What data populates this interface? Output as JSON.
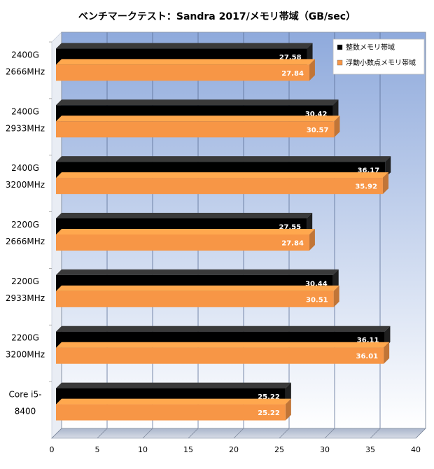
{
  "chart_data": {
    "type": "bar",
    "orientation": "horizontal",
    "title": "ベンチマークテスト：Sandra 2017/メモリ帯域（GB/sec）",
    "categories": [
      [
        "2400G",
        "2666MHz"
      ],
      [
        "2400G",
        "2933MHz"
      ],
      [
        "2400G",
        "3200MHz"
      ],
      [
        "2200G",
        "2666MHz"
      ],
      [
        "2200G",
        "2933MHz"
      ],
      [
        "2200G",
        "3200MHz"
      ],
      [
        "Core i5-",
        "8400"
      ]
    ],
    "series": [
      {
        "name": "整数メモリ帯域",
        "color": "#000000",
        "label_color": "#ffffff",
        "values": [
          27.58,
          30.42,
          36.17,
          27.55,
          30.44,
          36.11,
          25.22
        ],
        "labels": [
          "27.58",
          "30.42",
          "36.17",
          "27.55",
          "30.44",
          "36.11",
          "25.22"
        ]
      },
      {
        "name": "浮動小数点メモリ帯域",
        "color": "#f79646",
        "label_color": "#ffffff",
        "values": [
          27.84,
          30.57,
          35.92,
          27.84,
          30.51,
          36.01,
          25.22
        ],
        "labels": [
          "27.84",
          "30.57",
          "35.92",
          "27.84",
          "30.51",
          "36.01",
          "25.22"
        ]
      }
    ],
    "xlim": [
      0,
      40
    ],
    "xticks": [
      "0",
      "5",
      "10",
      "15",
      "20",
      "25",
      "30",
      "35",
      "40"
    ],
    "grid": true,
    "legend_position": "top-right",
    "background_gradient": [
      "#8faadc",
      "#ffffff"
    ]
  }
}
